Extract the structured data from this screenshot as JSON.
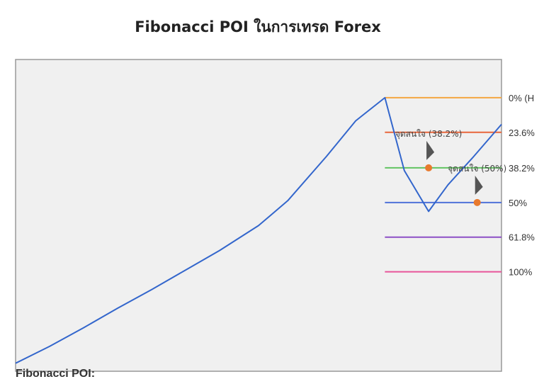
{
  "title": "Fibonacci POI ในการเทรด Forex",
  "footer_label": "Fibonacci POI:",
  "chart_data": {
    "type": "line",
    "title": "Fibonacci POI ในการเทรด Forex",
    "xlabel": "",
    "ylabel": "",
    "grid": false,
    "background": "#f0f0f0",
    "price_line_color": "#3366cc",
    "price_series": {
      "x": [
        0,
        7,
        14,
        21,
        28,
        35,
        42,
        50,
        56,
        64,
        70,
        76,
        80,
        85,
        89,
        94,
        100
      ],
      "y": [
        -0.83,
        -0.64,
        -0.43,
        -0.21,
        0.0,
        0.22,
        0.44,
        0.72,
        1.0,
        1.5,
        1.9,
        2.16,
        1.34,
        0.88,
        1.18,
        1.48,
        1.86
      ]
    },
    "fibonacci_levels": [
      {
        "label": "0% (H",
        "ratio": 0.0,
        "price": 2.16,
        "color": "#f4a742"
      },
      {
        "label": "23.6%",
        "ratio": 0.236,
        "price": 1.77,
        "color": "#e8663c"
      },
      {
        "label": "38.2%",
        "ratio": 0.382,
        "price": 1.37,
        "color": "#62c462"
      },
      {
        "label": "50%",
        "ratio": 0.5,
        "price": 0.98,
        "color": "#4f72d9"
      },
      {
        "label": "61.8%",
        "ratio": 0.618,
        "price": 0.59,
        "color": "#8c4fc6"
      },
      {
        "label": "100%",
        "ratio": 1.0,
        "price": 0.2,
        "color": "#e8559a"
      }
    ],
    "points_of_interest": [
      {
        "label": "จุดสนใจ (38.2%)",
        "x": 85,
        "y": 1.37,
        "color": "#e87a2e"
      },
      {
        "label": "จุดสนใจ (50%)",
        "x": 95,
        "y": 0.98,
        "color": "#e87a2e"
      }
    ],
    "xlim": [
      0,
      100
    ],
    "ylim": [
      -0.92,
      2.59
    ]
  }
}
